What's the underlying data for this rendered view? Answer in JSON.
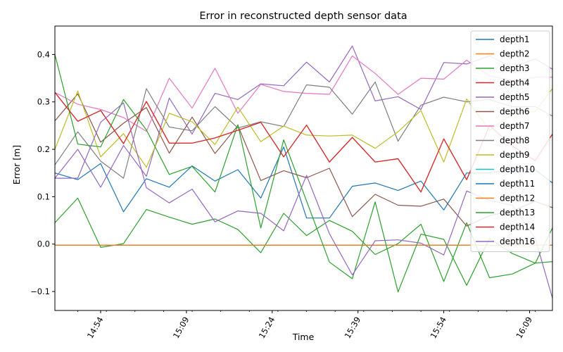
{
  "chart_data": {
    "type": "line",
    "title": "Error in reconstructed depth sensor data",
    "xlabel": "Time",
    "ylabel": "Error [m]",
    "ylim": [
      -0.14,
      0.46
    ],
    "yticks": [
      -0.1,
      0.0,
      0.1,
      0.2,
      0.3,
      0.4
    ],
    "ytick_labels": [
      "−0.1",
      "0.0",
      "0.1",
      "0.2",
      "0.3",
      "0.4"
    ],
    "xlim": [
      "14:46",
      "16:13"
    ],
    "xticks_major": [
      "14:54",
      "15:09",
      "15:24",
      "15:39",
      "15:54",
      "16:09"
    ],
    "grid": false,
    "legend_position": "top-right",
    "x": [
      "14:46",
      "14:50",
      "14:54",
      "14:58",
      "15:02",
      "15:06",
      "15:10",
      "15:14",
      "15:18",
      "15:22",
      "15:26",
      "15:30",
      "15:34",
      "15:38",
      "15:42",
      "15:46",
      "15:50",
      "15:54",
      "15:58",
      "16:02",
      "16:06",
      "16:10",
      "16:13"
    ],
    "series": [
      {
        "name": "depth1",
        "color": "#1f77b4",
        "values": [
          0.15,
          0.136,
          0.17,
          0.068,
          0.138,
          0.12,
          0.165,
          0.133,
          0.157,
          0.097,
          0.205,
          0.055,
          0.055,
          0.122,
          0.129,
          0.113,
          0.133,
          0.072,
          0.15,
          0.15,
          0.157,
          0.157,
          0.129
        ]
      },
      {
        "name": "depth2",
        "color": "#ff7f0e",
        "values": [
          -0.002,
          -0.002,
          -0.002,
          -0.002,
          -0.002,
          -0.002,
          -0.002,
          -0.002,
          -0.002,
          -0.002,
          -0.002,
          -0.002,
          -0.002,
          -0.002,
          -0.002,
          -0.002,
          -0.002,
          -0.002,
          -0.002,
          -0.002,
          -0.002,
          -0.002,
          -0.002
        ]
      },
      {
        "name": "depth3",
        "color": "#2ca02c",
        "values": [
          0.045,
          0.097,
          -0.007,
          0.001,
          0.073,
          0.057,
          0.042,
          0.053,
          0.031,
          -0.018,
          0.065,
          0.018,
          0.05,
          0.027,
          -0.022,
          0.001,
          0.042,
          -0.079,
          0.045,
          -0.071,
          -0.063,
          -0.04,
          -0.037
        ]
      },
      {
        "name": "depth4",
        "color": "#d62728",
        "values": [
          0.32,
          0.259,
          0.282,
          0.212,
          0.301,
          0.213,
          0.213,
          0.224,
          0.24,
          0.257,
          0.184,
          0.251,
          0.173,
          0.225,
          0.173,
          0.18,
          0.11,
          0.222,
          0.136,
          0.25,
          0.207,
          0.176,
          0.232
        ]
      },
      {
        "name": "depth5",
        "color": "#9467bd",
        "values": [
          0.139,
          0.2,
          0.12,
          0.208,
          0.143,
          0.308,
          0.232,
          0.318,
          0.305,
          0.338,
          0.334,
          0.384,
          0.342,
          0.418,
          0.302,
          0.311,
          0.284,
          0.383,
          0.38,
          0.397,
          0.373,
          0.391,
          0.369
        ]
      },
      {
        "name": "depth6",
        "color": "#8c564b",
        "values": [
          0.26,
          0.317,
          0.215,
          0.255,
          0.288,
          0.192,
          0.268,
          0.191,
          0.25,
          0.134,
          0.155,
          0.14,
          0.16,
          0.058,
          0.105,
          0.082,
          0.08,
          0.095,
          0.038,
          0.06,
          0.07,
          0.09,
          0.077
        ]
      },
      {
        "name": "depth7",
        "color": "#e377c2",
        "values": [
          0.32,
          0.295,
          0.284,
          0.267,
          0.238,
          0.35,
          0.287,
          0.371,
          0.276,
          0.337,
          0.322,
          0.318,
          0.316,
          0.397,
          0.36,
          0.316,
          0.35,
          0.348,
          0.388,
          0.355,
          0.345,
          0.352,
          0.352
        ]
      },
      {
        "name": "depth8",
        "color": "#7f7f7f",
        "values": [
          0.167,
          0.237,
          0.175,
          0.139,
          0.328,
          0.247,
          0.239,
          0.29,
          0.245,
          0.258,
          0.248,
          0.336,
          0.331,
          0.274,
          0.342,
          0.217,
          0.293,
          0.31,
          0.3,
          0.305,
          0.29,
          0.29,
          0.27
        ]
      },
      {
        "name": "depth9",
        "color": "#bcbd22",
        "values": [
          0.2,
          0.323,
          0.184,
          0.233,
          0.162,
          0.276,
          0.258,
          0.21,
          0.289,
          0.216,
          0.249,
          0.23,
          0.228,
          0.23,
          0.202,
          0.237,
          0.282,
          0.173,
          0.306,
          0.24,
          0.275,
          0.28,
          0.328
        ]
      },
      {
        "name": "depth10",
        "color": "#17becf",
        "values": [
          -0.002,
          -0.002,
          -0.002,
          -0.002,
          -0.002,
          -0.002,
          -0.002,
          -0.002,
          -0.002,
          -0.002,
          -0.002,
          -0.002,
          -0.002,
          -0.002,
          -0.002,
          -0.002,
          -0.002,
          -0.002,
          -0.002,
          -0.002,
          -0.002,
          -0.002,
          -0.002
        ]
      },
      {
        "name": "depth11",
        "color": "#1f77b4",
        "values": [
          -0.002,
          -0.002,
          -0.002,
          -0.002,
          -0.002,
          -0.002,
          -0.002,
          -0.002,
          -0.002,
          -0.002,
          -0.002,
          -0.002,
          -0.002,
          -0.002,
          -0.002,
          -0.002,
          -0.002,
          -0.002,
          -0.002,
          -0.002,
          -0.002,
          -0.002,
          -0.002
        ]
      },
      {
        "name": "depth12",
        "color": "#ff7f0e",
        "values": [
          -0.002,
          -0.002,
          -0.002,
          -0.002,
          -0.002,
          -0.002,
          -0.002,
          -0.002,
          -0.002,
          -0.002,
          -0.002,
          -0.002,
          -0.002,
          -0.002,
          -0.002,
          -0.002,
          -0.002,
          -0.002,
          -0.002,
          -0.002,
          -0.002,
          -0.002,
          -0.002
        ]
      },
      {
        "name": "depth13",
        "color": "#2ca02c",
        "values": [
          0.4,
          0.211,
          0.205,
          0.305,
          0.241,
          0.147,
          0.164,
          0.11,
          0.252,
          0.034,
          0.22,
          0.091,
          -0.038,
          -0.073,
          0.089,
          -0.101,
          0.021,
          0.01,
          -0.087,
          0.012,
          -0.02,
          -0.04,
          0.034
        ]
      },
      {
        "name": "depth14",
        "color": "#d62728",
        "values": [
          0.32,
          0.259,
          0.282,
          0.212,
          0.301,
          0.213,
          0.213,
          0.224,
          0.24,
          0.257,
          0.184,
          0.251,
          0.173,
          0.225,
          0.173,
          0.18,
          0.11,
          0.222,
          0.136,
          0.25,
          0.207,
          0.176,
          0.232
        ]
      },
      {
        "name": "depth16",
        "color": "#9467bd",
        "values": [
          0.139,
          0.139,
          0.257,
          0.298,
          0.119,
          0.087,
          0.116,
          0.047,
          0.07,
          0.065,
          0.028,
          0.145,
          0.022,
          -0.065,
          0.007,
          0.009,
          0.002,
          -0.023,
          0.112,
          0.092,
          0.082,
          0.012,
          -0.114
        ]
      }
    ]
  }
}
